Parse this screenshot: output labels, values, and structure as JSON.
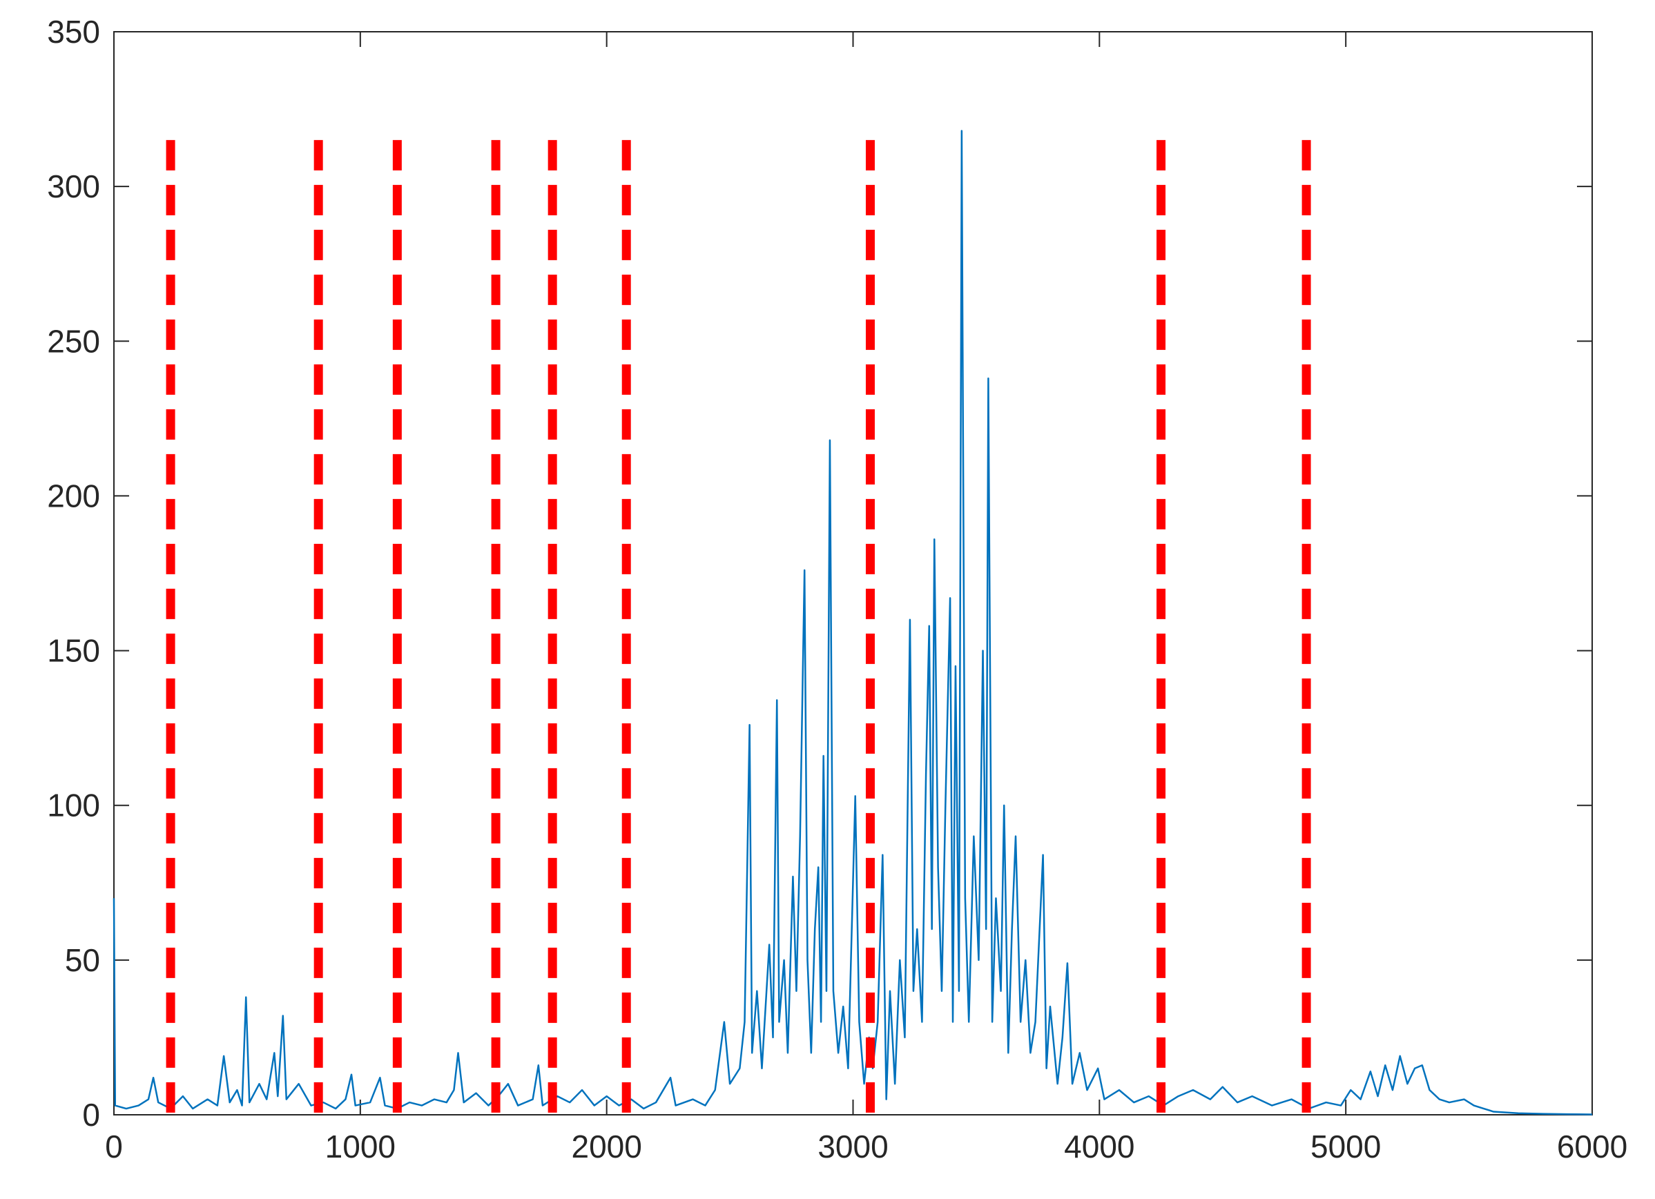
{
  "chart_data": {
    "type": "line",
    "x": [
      0,
      5,
      50,
      100,
      140,
      160,
      180,
      230,
      280,
      320,
      380,
      420,
      446,
      470,
      500,
      520,
      536,
      550,
      590,
      620,
      651,
      665,
      686,
      700,
      750,
      800,
      850,
      900,
      940,
      964,
      980,
      1040,
      1080,
      1100,
      1150,
      1200,
      1250,
      1300,
      1350,
      1380,
      1397,
      1420,
      1470,
      1520,
      1560,
      1600,
      1640,
      1700,
      1723,
      1740,
      1800,
      1850,
      1900,
      1950,
      2000,
      2050,
      2100,
      2150,
      2200,
      2259,
      2280,
      2350,
      2400,
      2440,
      2477,
      2500,
      2540,
      2560,
      2580,
      2590,
      2610,
      2630,
      2660,
      2675,
      2691,
      2700,
      2720,
      2735,
      2756,
      2770,
      2785,
      2803,
      2815,
      2830,
      2845,
      2859,
      2870,
      2880,
      2892,
      2906,
      2920,
      2940,
      2960,
      2980,
      3009,
      3025,
      3045,
      3065,
      3080,
      3100,
      3120,
      3135,
      3150,
      3170,
      3190,
      3210,
      3231,
      3245,
      3260,
      3280,
      3296,
      3309,
      3320,
      3330,
      3345,
      3360,
      3375,
      3394,
      3405,
      3416,
      3430,
      3441,
      3455,
      3470,
      3490,
      3510,
      3527,
      3540,
      3549,
      3565,
      3580,
      3600,
      3613,
      3630,
      3645,
      3660,
      3680,
      3700,
      3720,
      3740,
      3771,
      3785,
      3800,
      3830,
      3850,
      3870,
      3890,
      3920,
      3950,
      3994,
      4020,
      4080,
      4140,
      4200,
      4260,
      4320,
      4380,
      4450,
      4500,
      4560,
      4620,
      4700,
      4780,
      4850,
      4920,
      4980,
      5020,
      5060,
      5100,
      5130,
      5160,
      5190,
      5220,
      5250,
      5280,
      5310,
      5340,
      5380,
      5420,
      5480,
      5520,
      5560,
      5600,
      5700,
      5800,
      5900,
      6000
    ],
    "values": [
      70,
      3,
      2,
      3,
      5,
      12,
      4,
      2,
      6,
      2,
      5,
      3,
      19,
      4,
      8,
      3,
      38,
      4,
      10,
      5,
      20,
      6,
      32,
      5,
      10,
      3,
      4,
      2,
      5,
      13,
      3,
      4,
      12,
      3,
      2,
      4,
      3,
      5,
      4,
      8,
      20,
      4,
      7,
      3,
      6,
      10,
      3,
      5,
      16,
      3,
      6,
      4,
      8,
      3,
      6,
      3,
      5,
      2,
      4,
      12,
      3,
      5,
      3,
      8,
      30,
      10,
      15,
      30,
      126,
      20,
      40,
      15,
      55,
      25,
      134,
      30,
      50,
      20,
      77,
      40,
      90,
      176,
      50,
      20,
      60,
      80,
      30,
      116,
      40,
      218,
      40,
      20,
      35,
      15,
      103,
      30,
      10,
      25,
      15,
      30,
      84,
      5,
      40,
      10,
      50,
      25,
      160,
      40,
      60,
      30,
      110,
      158,
      60,
      186,
      80,
      40,
      100,
      167,
      30,
      145,
      40,
      318,
      70,
      30,
      90,
      50,
      150,
      60,
      238,
      30,
      70,
      40,
      100,
      20,
      60,
      90,
      30,
      50,
      20,
      30,
      84,
      15,
      35,
      10,
      25,
      49,
      10,
      20,
      8,
      15,
      5,
      8,
      4,
      6,
      3,
      6,
      8,
      5,
      9,
      4,
      6,
      3,
      5,
      2,
      4,
      3,
      8,
      5,
      14,
      6,
      16,
      8,
      19,
      10,
      15,
      16,
      8,
      5,
      4,
      5,
      3,
      2,
      1,
      0.5,
      0.3,
      0.2,
      0.1
    ],
    "color": "#0072bd",
    "vlines": {
      "x": [
        230,
        830,
        1150,
        1550,
        1780,
        2080,
        3070,
        4250,
        4840
      ],
      "y_top": 315,
      "color": "#ff0000"
    },
    "xlim": [
      0,
      6000
    ],
    "xticks": [
      0,
      1000,
      2000,
      3000,
      4000,
      5000,
      6000
    ],
    "ylim": [
      0,
      350
    ],
    "yticks": [
      0,
      50,
      100,
      150,
      200,
      250,
      300,
      350
    ]
  }
}
